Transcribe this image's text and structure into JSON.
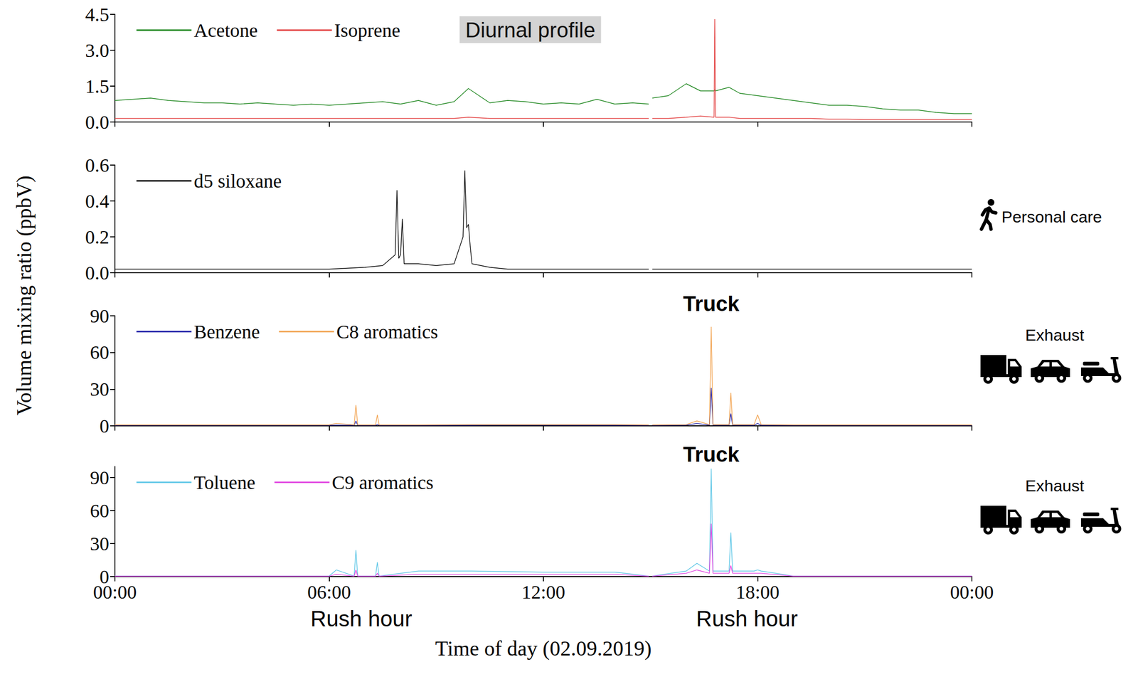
{
  "figure": {
    "title": "Diurnal profile",
    "y_label": "Volume mixing ratio (ppbV)",
    "x_label": "Time of day (02.09.2019)",
    "annotations": [
      {
        "text": "Rush hour",
        "x": 6.9
      },
      {
        "text": "Rush hour",
        "x": 17.7
      }
    ]
  },
  "chart_data": [
    {
      "type": "line",
      "grid": false,
      "legend": "upper left",
      "tick_labels": "y",
      "xlim": [
        0,
        24
      ],
      "xticks": [
        {
          "value": 0,
          "label": "00:00"
        },
        {
          "value": 6,
          "label": "06:00"
        },
        {
          "value": 12,
          "label": "12:00"
        },
        {
          "value": 18,
          "label": "18:00"
        },
        {
          "value": 24,
          "label": "00:00"
        }
      ],
      "ylim": [
        0,
        4.5
      ],
      "yticks": [
        {
          "value": 0,
          "label": "0.0"
        },
        1.5,
        {
          "value": 3,
          "label": "3.0"
        },
        4.5
      ],
      "x": [
        0,
        0.5,
        1,
        1.5,
        2,
        2.5,
        3,
        3.5,
        4,
        4.5,
        5,
        5.5,
        6,
        6.5,
        7,
        7.5,
        8,
        8.5,
        9,
        9.5,
        9.9,
        10.5,
        11,
        11.5,
        12,
        12.5,
        13,
        13.5,
        14,
        14.5,
        14.95,
        15,
        15.05,
        15.5,
        16,
        16.4,
        16.78,
        16.8,
        16.82,
        17.2,
        17.5,
        18,
        18.5,
        19,
        19.5,
        20,
        20.5,
        21,
        21.5,
        22,
        22.5,
        23,
        23.5,
        24
      ],
      "series": [
        {
          "name": "Acetone",
          "color": "#1a841a",
          "values": [
            0.9,
            0.95,
            1,
            0.9,
            0.85,
            0.8,
            0.8,
            0.75,
            0.8,
            0.75,
            0.7,
            0.75,
            0.7,
            0.75,
            0.8,
            0.85,
            0.75,
            0.9,
            0.7,
            0.85,
            1.4,
            0.8,
            0.9,
            0.85,
            0.75,
            0.8,
            0.75,
            0.95,
            0.75,
            0.8,
            0.75,
            null,
            1,
            1.1,
            1.6,
            1.3,
            1.3,
            1.35,
            1.3,
            1.45,
            1.2,
            1.1,
            1,
            0.9,
            0.8,
            0.7,
            0.7,
            0.65,
            0.55,
            0.5,
            0.5,
            0.4,
            0.35,
            0.35
          ]
        },
        {
          "name": "Isoprene",
          "color": "#e23b3b",
          "values": [
            0.15,
            0.15,
            0.15,
            0.15,
            0.15,
            0.15,
            0.15,
            0.15,
            0.15,
            0.15,
            0.15,
            0.15,
            0.15,
            0.15,
            0.15,
            0.15,
            0.15,
            0.15,
            0.15,
            0.15,
            0.2,
            0.15,
            0.15,
            0.15,
            0.15,
            0.15,
            0.15,
            0.15,
            0.15,
            0.15,
            0.15,
            null,
            0.15,
            0.15,
            0.2,
            0.25,
            0.2,
            4.3,
            0.2,
            0.2,
            0.15,
            0.15,
            0.15,
            0.15,
            0.15,
            0.12,
            0.12,
            0.1,
            0.1,
            0.1,
            0.1,
            0.1,
            0.1,
            0.1
          ]
        }
      ]
    },
    {
      "type": "line",
      "grid": false,
      "legend": "upper left",
      "tick_labels": "y",
      "side_label": "Personal care",
      "xlim": [
        0,
        24
      ],
      "xticks": [
        {
          "value": 0,
          "label": "00:00"
        },
        {
          "value": 6,
          "label": "06:00"
        },
        {
          "value": 12,
          "label": "12:00"
        },
        {
          "value": 18,
          "label": "18:00"
        },
        {
          "value": 24,
          "label": "00:00"
        }
      ],
      "ylim": [
        0,
        0.6
      ],
      "yticks": [
        {
          "value": 0,
          "label": "0.0"
        },
        0.2,
        0.4,
        0.6
      ],
      "x": [
        0,
        1,
        2,
        3,
        4,
        5,
        6,
        7,
        7.5,
        7.85,
        7.9,
        7.95,
        8,
        8.05,
        8.1,
        8.5,
        9,
        9.5,
        9.75,
        9.8,
        9.85,
        9.9,
        9.95,
        10,
        10.5,
        11,
        12,
        13,
        14,
        14.95,
        15,
        15.05,
        16,
        17,
        18,
        19,
        20,
        21,
        22,
        23,
        24
      ],
      "series": [
        {
          "name": "d5 siloxane",
          "color": "#000000",
          "values": [
            0.02,
            0.02,
            0.02,
            0.02,
            0.02,
            0.02,
            0.02,
            0.03,
            0.04,
            0.1,
            0.46,
            0.08,
            0.1,
            0.3,
            0.05,
            0.05,
            0.04,
            0.05,
            0.2,
            0.57,
            0.25,
            0.27,
            0.15,
            0.05,
            0.03,
            0.02,
            0.02,
            0.02,
            0.02,
            0.02,
            null,
            0.02,
            0.02,
            0.02,
            0.02,
            0.02,
            0.02,
            0.02,
            0.02,
            0.02,
            0.02
          ]
        }
      ]
    },
    {
      "type": "line",
      "grid": false,
      "legend": "upper left",
      "tick_labels": "y",
      "side_label": "Exhaust",
      "annotations": [
        {
          "text": "Truck",
          "x": 16.7
        }
      ],
      "xlim": [
        0,
        24
      ],
      "xticks": [
        {
          "value": 0,
          "label": "00:00"
        },
        {
          "value": 6,
          "label": "06:00"
        },
        {
          "value": 12,
          "label": "12:00"
        },
        {
          "value": 18,
          "label": "18:00"
        },
        {
          "value": 24,
          "label": "00:00"
        }
      ],
      "ylim": [
        0,
        90
      ],
      "yticks": [
        0,
        30,
        60,
        90
      ],
      "x": [
        0,
        3,
        6,
        6.2,
        6.7,
        6.75,
        6.8,
        7.3,
        7.35,
        7.4,
        8.5,
        10,
        12,
        14,
        14.95,
        15,
        15.05,
        16,
        16.3,
        16.65,
        16.7,
        16.75,
        17.2,
        17.25,
        17.3,
        17.9,
        18,
        18.1,
        19,
        21,
        24
      ],
      "series": [
        {
          "name": "Benzene",
          "color": "#1c1ca6",
          "values": [
            0.5,
            0.5,
            0.5,
            0.6,
            0.5,
            4,
            0.5,
            0.5,
            1,
            0.5,
            0.5,
            0.5,
            0.6,
            0.5,
            0.5,
            null,
            0.5,
            0.6,
            2,
            0.6,
            31,
            0.6,
            0.6,
            10,
            0.6,
            0.5,
            2,
            0.5,
            0.5,
            0.5,
            0.5
          ]
        },
        {
          "name": "C8 aromatics",
          "color": "#f2a24e",
          "values": [
            0.8,
            0.8,
            0.8,
            2,
            0.8,
            17,
            0.8,
            0.8,
            9,
            0.8,
            0.8,
            1,
            1,
            1,
            0.8,
            null,
            0.8,
            1,
            4,
            1,
            81,
            1,
            1,
            27,
            1,
            1,
            9,
            1,
            0.8,
            0.8,
            0.8
          ]
        }
      ]
    },
    {
      "type": "line",
      "grid": false,
      "legend": "upper left",
      "tick_labels": true,
      "side_label": "Exhaust",
      "annotations": [
        {
          "text": "Truck",
          "x": 16.7
        }
      ],
      "xlim": [
        0,
        24
      ],
      "xticks": [
        {
          "value": 0,
          "label": "00:00"
        },
        {
          "value": 6,
          "label": "06:00"
        },
        {
          "value": 12,
          "label": "12:00"
        },
        {
          "value": 18,
          "label": "18:00"
        },
        {
          "value": 24,
          "label": "00:00"
        }
      ],
      "ylim": [
        0,
        100
      ],
      "yticks": [
        0,
        30,
        60,
        90
      ],
      "x": [
        0,
        3,
        6,
        6.2,
        6.7,
        6.75,
        6.8,
        7.3,
        7.35,
        7.4,
        8.5,
        10,
        12,
        14,
        14.95,
        15,
        15.05,
        16,
        16.3,
        16.65,
        16.7,
        16.75,
        17.2,
        17.25,
        17.3,
        17.9,
        18,
        18.1,
        19,
        21,
        24
      ],
      "series": [
        {
          "name": "Toluene",
          "color": "#5cc6e6",
          "values": [
            0.5,
            0.5,
            0.5,
            6,
            0.5,
            24,
            0.5,
            0.5,
            13,
            0.5,
            5,
            5,
            4,
            4,
            0.5,
            null,
            0.5,
            5,
            12,
            5,
            98,
            5,
            5,
            40,
            5,
            5,
            6,
            5,
            0.5,
            0.5,
            0.5
          ]
        },
        {
          "name": "C9 aromatics",
          "color": "#e03fe0",
          "values": [
            0.3,
            0.3,
            0.3,
            2,
            0.3,
            6,
            0.3,
            0.3,
            3,
            0.3,
            2,
            2,
            2,
            2,
            0.3,
            null,
            0.3,
            3,
            6,
            3,
            48,
            3,
            3,
            10,
            3,
            3,
            3,
            3,
            0.3,
            0.3,
            0.3
          ]
        }
      ]
    }
  ]
}
